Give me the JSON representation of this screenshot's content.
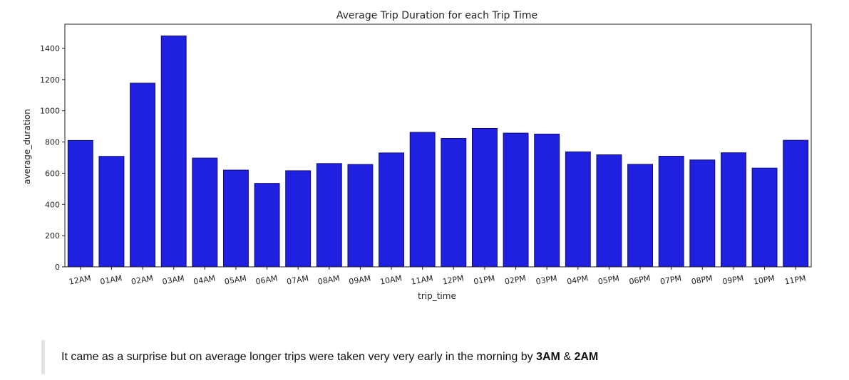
{
  "chart_data": {
    "type": "bar",
    "title": "Average Trip Duration for each Trip Time",
    "xlabel": "trip_time",
    "ylabel": "average_duration",
    "categories": [
      "12AM",
      "01AM",
      "02AM",
      "03AM",
      "04AM",
      "05AM",
      "06AM",
      "07AM",
      "08AM",
      "09AM",
      "10AM",
      "11AM",
      "12PM",
      "01PM",
      "02PM",
      "03PM",
      "04PM",
      "05PM",
      "06PM",
      "07PM",
      "08PM",
      "09PM",
      "10PM",
      "11PM"
    ],
    "values": [
      810,
      708,
      1177,
      1480,
      697,
      620,
      535,
      616,
      662,
      656,
      730,
      862,
      823,
      887,
      857,
      851,
      737,
      718,
      657,
      709,
      685,
      731,
      633,
      811
    ],
    "yticks": [
      0,
      200,
      400,
      600,
      800,
      1000,
      1200,
      1400
    ],
    "ylim": [
      0,
      1555
    ],
    "grid": false,
    "bar_color": "#2020e0",
    "bar_edge_color": "#0c0c7a"
  },
  "note": {
    "prefix": "It came as a surprise but on average longer trips were taken very very early in the morning by ",
    "bold_1": "3AM",
    "joiner": " & ",
    "bold_2": "2AM"
  }
}
